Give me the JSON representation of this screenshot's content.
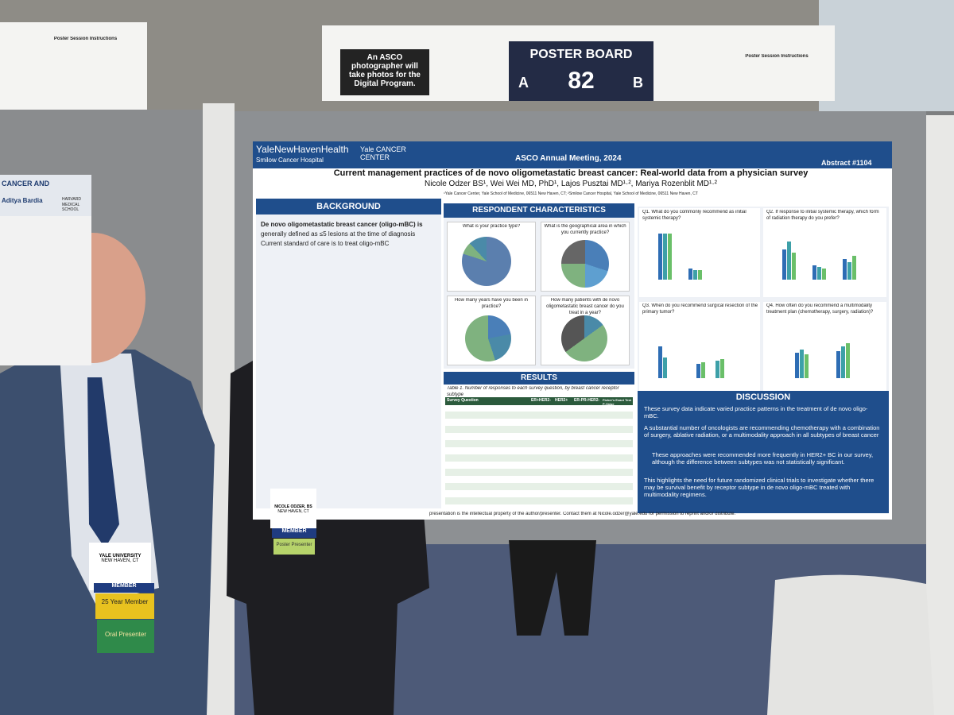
{
  "sign": {
    "board_label": "POSTER BOARD",
    "side_a": "A",
    "number": "82",
    "side_b": "B",
    "photographer_note": "An ASCO photographer will take photos for the Digital Program.",
    "instructions_left": "Poster Session Instructions",
    "instructions_right": "Poster Session Instructions"
  },
  "left_poster": {
    "heading": "CANCER AND",
    "author": "Aditya Bardia",
    "school": "HARVARD MEDICAL SCHOOL"
  },
  "poster": {
    "org": "YaleNewHavenHealth",
    "hospital": "Smilow Cancer Hospital",
    "center": "Yale CANCER CENTER",
    "meeting": "ASCO Annual Meeting, 2024",
    "abstract": "Abstract #1104",
    "title": "Current management practices of de novo oligometastatic breast cancer: Real-world data from a physician survey",
    "authors": "Nicole Odzer BS¹, Wei Wei MD, PhD¹, Lajos Pusztai MD¹·², Mariya Rozenblit MD¹·²",
    "affiliations": "¹Yale Cancer Center, Yale School of Medicine, 06511 New Haven, CT; ²Smilow Cancer Hospital, Yale School of Medicine, 06511 New Haven, CT",
    "background": {
      "heading": "BACKGROUND",
      "lines": [
        "De novo oligometastatic breast cancer (oligo-mBC) is",
        "generally defined as ≤5 lesions at the time of diagnosis",
        "Current standard of care is to treat oligo-mBC"
      ]
    },
    "respondents": {
      "heading": "RESPONDENT CHARACTERISTICS",
      "questions": [
        "What is your practice type?",
        "What is the geographical area in which you currently practice?",
        "How many years have you been in practice?",
        "How many patients with de novo oligometastatic breast cancer do you treat in a year?"
      ]
    },
    "results": {
      "heading": "RESULTS",
      "caption": "Table 1. Number of responses to each survey question, by breast cancer receptor subtype",
      "columns": [
        "Survey Question",
        "ER+HER2-",
        "HER2+",
        "ER-PR-HER2-",
        "Fisher's Exact Test P-Value"
      ]
    },
    "questions": [
      "Q1. What do you commonly recommend as initial systemic therapy?",
      "Q2. If response to initial systemic therapy, which form of radiation therapy do you prefer?",
      "Q3. When do you recommend surgical resection of the primary tumor?",
      "Q4. How often do you recommend a multimodality treatment plan (chemotherapy, surgery, radiation)?"
    ],
    "discussion": {
      "heading": "DISCUSSION",
      "bullets": [
        "These survey data indicate varied practice patterns in the treatment of de novo oligo-mBC.",
        "A substantial number of oncologists are recommending chemotherapy with a combination of surgery, ablative radiation, or a multimodality approach in all subtypes of breast cancer",
        "These approaches were recommended more frequently in HER2+ BC in our survey, although the difference between subtypes was not statistically significant.",
        "This highlights the need for future randomized clinical trials to investigate whether there may be survival benefit by receptor subtype in de novo oligo-mBC treated with multimodality regimens."
      ]
    },
    "footer": "presentation is the intellectual property of the author/presenter. Contact them at Nicole.odzer@yale.edu for permission to reprint and/or distribute."
  },
  "badges": {
    "man_org": "YALE UNIVERSITY",
    "man_city": "NEW HAVEN, CT",
    "man_member": "MEMBER",
    "man_ribbon1": "25 Year Member",
    "man_ribbon2": "Oral Presenter",
    "woman_name": "NICOLE ODZER, BS",
    "woman_city": "NEW HAVEN, CT",
    "woman_member": "MEMBER",
    "woman_ribbon": "Poster Presenter"
  }
}
